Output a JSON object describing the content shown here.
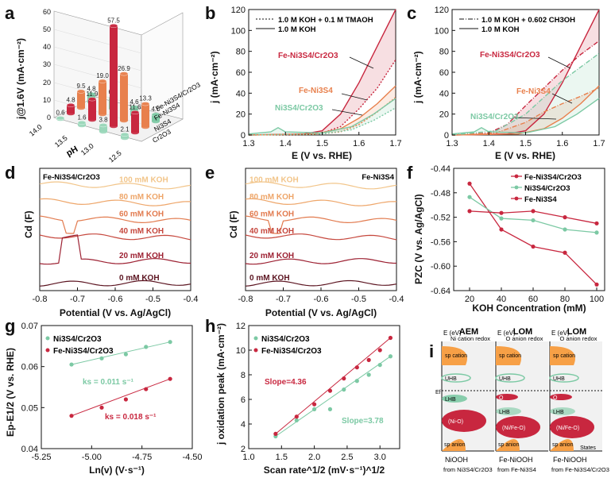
{
  "colors": {
    "red": "#c8273f",
    "teal": "#7cc9a4",
    "orange": "#e8804d",
    "dark": "#111111"
  },
  "chart_data": [
    {
      "panel": "a",
      "type": "bar",
      "title": "",
      "zlabel": "j@1.6V (mA·cm⁻²)",
      "xlabel": "pH",
      "ph_ticks": [
        "14.0",
        "13.5",
        "13.0",
        "12.5"
      ],
      "z_ticks": [
        "0",
        "10",
        "20",
        "30",
        "40",
        "50",
        "60"
      ],
      "series": [
        {
          "name": "Fe-Ni3S4/Cr2O3",
          "values": [
            4.8,
            6.5,
            4.6,
            4.0
          ]
        },
        {
          "name": "Fe-Ni3S4",
          "values": [
            9.5,
            19.0,
            26.9,
            13.3
          ]
        },
        {
          "name": "Ni3S4",
          "values": [
            4.8,
            11.9,
            57.5,
            11.6
          ]
        },
        {
          "name": "Cr2O3",
          "values": [
            0.6,
            1.6,
            3.8,
            2.1
          ]
        }
      ],
      "extra_labels": [
        "0.6",
        "1.6",
        "3.8",
        "2.1",
        "0.8",
        "0.7",
        "1.2",
        "0.2",
        "7.6"
      ]
    },
    {
      "panel": "b",
      "type": "line",
      "xlabel": "E (V vs. RHE)",
      "ylabel": "j (mA·cm⁻²)",
      "xlim": [
        1.3,
        1.7
      ],
      "ylim": [
        0,
        120
      ],
      "xticks": [
        "1.3",
        "1.4",
        "1.5",
        "1.6",
        "1.7"
      ],
      "yticks": [
        "0",
        "20",
        "40",
        "60",
        "80",
        "100",
        "120"
      ],
      "legend": [
        "1.0 M KOH + 0.1 M TMAOH",
        "1.0 M KOH"
      ],
      "annotations": [
        "Fe-Ni3S4/Cr2O3",
        "Fe-Ni3S4",
        "Ni3S4/Cr2O3"
      ],
      "series": [
        {
          "name": "Fe-Ni3S4/Cr2O3 1.0 M KOH",
          "x": [
            1.3,
            1.45,
            1.5,
            1.55,
            1.6,
            1.65,
            1.7
          ],
          "y": [
            0,
            1,
            4,
            20,
            50,
            85,
            120
          ]
        },
        {
          "name": "Fe-Ni3S4/Cr2O3 TMAOH",
          "x": [
            1.3,
            1.45,
            1.5,
            1.55,
            1.6,
            1.65,
            1.7
          ],
          "y": [
            0,
            0.5,
            2,
            8,
            25,
            45,
            72
          ]
        },
        {
          "name": "Fe-Ni3S4 1.0 M KOH",
          "x": [
            1.3,
            1.48,
            1.55,
            1.6,
            1.65,
            1.7
          ],
          "y": [
            0,
            1,
            6,
            16,
            30,
            47
          ]
        },
        {
          "name": "Fe-Ni3S4 TMAOH",
          "x": [
            1.3,
            1.48,
            1.55,
            1.6,
            1.65,
            1.7
          ],
          "y": [
            0,
            0.5,
            3,
            10,
            22,
            36
          ]
        },
        {
          "name": "Ni3S4/Cr2O3 1.0 M KOH",
          "x": [
            1.3,
            1.36,
            1.38,
            1.4,
            1.5,
            1.58,
            1.64,
            1.7
          ],
          "y": [
            1,
            3,
            7,
            3,
            2,
            8,
            20,
            35
          ]
        },
        {
          "name": "Ni3S4/Cr2O3 TMAOH",
          "x": [
            1.3,
            1.5,
            1.58,
            1.64,
            1.7
          ],
          "y": [
            0,
            1,
            5,
            14,
            26
          ]
        }
      ]
    },
    {
      "panel": "c",
      "type": "line",
      "xlabel": "E (V vs. RHE)",
      "ylabel": "j (mA·cm⁻²)",
      "xlim": [
        1.3,
        1.7
      ],
      "ylim": [
        0,
        120
      ],
      "xticks": [
        "1.3",
        "1.4",
        "1.5",
        "1.6",
        "1.7"
      ],
      "yticks": [
        "0",
        "20",
        "40",
        "60",
        "80",
        "100",
        "120"
      ],
      "legend": [
        "1.0 M KOH + 0.602 CH3OH",
        "1.0 M KOH"
      ],
      "annotations": [
        "Fe-Ni3S4/Cr2O3",
        "Fe-Ni3S4",
        "Ni3S4/Cr2O3"
      ],
      "series": [
        {
          "name": "Fe-Ni3S4/Cr2O3 1.0 M KOH",
          "x": [
            1.3,
            1.45,
            1.5,
            1.55,
            1.6,
            1.65,
            1.7
          ],
          "y": [
            0,
            1,
            4,
            20,
            50,
            85,
            120
          ]
        },
        {
          "name": "Fe-Ni3S4/Cr2O3 CH3OH",
          "x": [
            1.3,
            1.4,
            1.45,
            1.5,
            1.55,
            1.6,
            1.65,
            1.7
          ],
          "y": [
            0,
            2,
            10,
            28,
            45,
            62,
            77,
            90
          ]
        },
        {
          "name": "Fe-Ni3S4 1.0 M KOH",
          "x": [
            1.3,
            1.48,
            1.55,
            1.6,
            1.65,
            1.7
          ],
          "y": [
            0,
            1,
            6,
            16,
            30,
            47
          ]
        },
        {
          "name": "Fe-Ni3S4 CH3OH",
          "x": [
            1.3,
            1.42,
            1.5,
            1.55,
            1.6,
            1.65,
            1.7
          ],
          "y": [
            0,
            2,
            12,
            22,
            30,
            37,
            45
          ]
        },
        {
          "name": "Ni3S4/Cr2O3 1.0 M KOH",
          "x": [
            1.3,
            1.36,
            1.38,
            1.4,
            1.5,
            1.58,
            1.64,
            1.7
          ],
          "y": [
            1,
            3,
            7,
            3,
            2,
            8,
            20,
            35
          ]
        },
        {
          "name": "Ni3S4/Cr2O3 CH3OH",
          "x": [
            1.3,
            1.42,
            1.5,
            1.55,
            1.6,
            1.65,
            1.7
          ],
          "y": [
            0,
            4,
            20,
            36,
            52,
            65,
            78
          ]
        }
      ]
    },
    {
      "panel": "d",
      "type": "line",
      "title": "Fe-Ni3S4/Cr2O3",
      "xlabel": "Potential (V vs. Ag/AgCl)",
      "ylabel": "Cd (F)",
      "xlim": [
        -0.8,
        -0.4
      ],
      "xticks": [
        "-0.8",
        "-0.7",
        "-0.6",
        "-0.5",
        "-0.4"
      ],
      "curve_labels": [
        "100 mM KOH",
        "80 mM KOH",
        "60 mM KOH",
        "40 mM KOH",
        "20 mM KOH",
        "0 mM KOH"
      ]
    },
    {
      "panel": "e",
      "type": "line",
      "title": "Fe-Ni3S4",
      "xlabel": "Potential (V vs. Ag/AgCl)",
      "ylabel": "Cd (F)",
      "xlim": [
        -0.8,
        -0.4
      ],
      "xticks": [
        "-0.8",
        "-0.7",
        "-0.6",
        "-0.5",
        "-0.4"
      ],
      "curve_labels": [
        "100 mM KOH",
        "80 mM KOH",
        "60 mM KOH",
        "40 mM KOH",
        "20 mM KOH",
        "0 mM KOH"
      ]
    },
    {
      "panel": "f",
      "type": "line",
      "xlabel": "KOH Concentration (mM)",
      "ylabel": "PZC (V vs. Ag/AgCl)",
      "xlim": [
        10,
        105
      ],
      "ylim": [
        -0.64,
        -0.44
      ],
      "xticks": [
        "20",
        "40",
        "60",
        "80",
        "100"
      ],
      "yticks": [
        "-0.44",
        "-0.48",
        "-0.52",
        "-0.56",
        "-0.60",
        "-0.64"
      ],
      "legend": "top-right",
      "series": [
        {
          "name": "Fe-Ni3S4/Cr2O3",
          "x": [
            20,
            40,
            60,
            80,
            100
          ],
          "y": [
            -0.465,
            -0.54,
            -0.568,
            -0.578,
            -0.63
          ]
        },
        {
          "name": "Ni3S4/Cr2O3",
          "x": [
            20,
            40,
            60,
            80,
            100
          ],
          "y": [
            -0.487,
            -0.522,
            -0.525,
            -0.54,
            -0.545
          ]
        },
        {
          "name": "Fe-Ni3S4",
          "x": [
            20,
            40,
            60,
            80,
            100
          ],
          "y": [
            -0.51,
            -0.513,
            -0.51,
            -0.52,
            -0.53
          ]
        }
      ]
    },
    {
      "panel": "g",
      "type": "scatter",
      "xlabel": "Ln(v) (V·s⁻¹)",
      "ylabel": "Ep-E1/2 (V vs. RHE)",
      "xlim": [
        -5.25,
        -4.5
      ],
      "ylim": [
        0.04,
        0.07
      ],
      "xticks": [
        "-5.25",
        "-5.00",
        "-4.75",
        "-4.50"
      ],
      "yticks": [
        "0.04",
        "0.05",
        "0.06",
        "0.07"
      ],
      "annotations": [
        "ks = 0.011 s⁻¹",
        "ks = 0.018 s⁻¹"
      ],
      "series": [
        {
          "name": "Ni3S4/Cr2O3",
          "x": [
            -5.1,
            -4.95,
            -4.83,
            -4.73,
            -4.61
          ],
          "y": [
            0.0605,
            0.062,
            0.063,
            0.0648,
            0.066
          ]
        },
        {
          "name": "Fe-Ni3S4/Cr2O3",
          "x": [
            -5.1,
            -4.95,
            -4.83,
            -4.73,
            -4.61
          ],
          "y": [
            0.048,
            0.05,
            0.052,
            0.0545,
            0.057
          ]
        }
      ]
    },
    {
      "panel": "h",
      "type": "scatter",
      "xlabel": "Scan rate^1/2 (mV·s⁻¹)^1/2",
      "ylabel": "j oxidation peak (mA·cm⁻²)",
      "xlim": [
        1.0,
        3.3
      ],
      "ylim": [
        2.0,
        12.0
      ],
      "xticks": [
        "1.0",
        "1.5",
        "2.0",
        "2.5",
        "3.0"
      ],
      "yticks": [
        "2",
        "4",
        "6",
        "8",
        "10",
        "12"
      ],
      "annotations": [
        "Slope=4.36",
        "Slope=3.78"
      ],
      "series": [
        {
          "name": "Ni3S4/Cr2O3",
          "x": [
            1.41,
            1.73,
            2.0,
            2.24,
            2.45,
            2.65,
            2.83,
            3.0,
            3.16
          ],
          "y": [
            3.0,
            4.3,
            5.2,
            5.2,
            6.8,
            7.5,
            8.0,
            8.8,
            9.5
          ]
        },
        {
          "name": "Fe-Ni3S4/Cr2O3",
          "x": [
            1.41,
            1.73,
            2.0,
            2.24,
            2.45,
            2.65,
            2.83,
            3.0,
            3.16
          ],
          "y": [
            3.2,
            4.6,
            5.6,
            6.7,
            7.7,
            8.6,
            9.2,
            10.0,
            11.0
          ]
        }
      ]
    }
  ],
  "panel_i": {
    "titles": [
      "AEM",
      "LOM",
      "LOM"
    ],
    "subtitles": [
      "Ni cation redox",
      "O anion redox",
      "O anion redox"
    ],
    "axis": "E (eV)",
    "states": "States",
    "ef": "Ef",
    "band_labels": [
      "sp cation",
      "UHB",
      "LHB",
      "(Ni-O)",
      "sp anion"
    ],
    "band_labels_2": [
      "sp cation",
      "UHB",
      "LHB",
      "(Ni/Fe-O)",
      "sp anion"
    ],
    "o_labels": [
      "O",
      "O",
      "(Ni/Fe-O)"
    ],
    "captions": [
      "NiOOH",
      "Fe-NiOOH",
      "Fe-NiOOH"
    ],
    "captions_from": [
      "from Ni3S4/Cr2O3",
      "from Fe-Ni3S4",
      "from Fe-Ni3S4/Cr2O3"
    ]
  }
}
